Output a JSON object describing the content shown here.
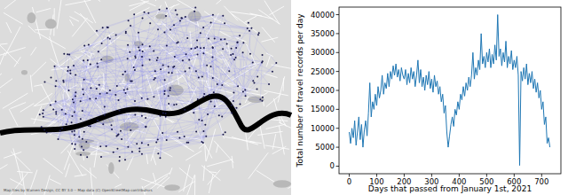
{
  "map": {
    "attribution": "Map tiles by Stamen Design, CC BY 3.0 -- Map data (C) OpenStreetMap contributors"
  },
  "chart_data": {
    "type": "line",
    "x_label": "Days that passed from January 1st, 2021",
    "y_label": "Total number of travel records per day",
    "color": "#1f77b4",
    "x": [
      0,
      5,
      10,
      15,
      20,
      25,
      30,
      35,
      40,
      45,
      50,
      55,
      60,
      65,
      70,
      75,
      80,
      85,
      90,
      95,
      100,
      105,
      110,
      115,
      120,
      125,
      130,
      135,
      140,
      145,
      150,
      155,
      160,
      165,
      170,
      175,
      180,
      185,
      190,
      195,
      200,
      205,
      210,
      215,
      220,
      225,
      230,
      235,
      240,
      245,
      250,
      255,
      260,
      265,
      270,
      275,
      280,
      285,
      290,
      295,
      300,
      305,
      310,
      315,
      320,
      325,
      330,
      335,
      340,
      345,
      350,
      355,
      360,
      365,
      370,
      375,
      380,
      385,
      390,
      395,
      400,
      405,
      410,
      415,
      420,
      425,
      430,
      435,
      440,
      445,
      450,
      455,
      460,
      465,
      470,
      475,
      480,
      485,
      490,
      495,
      500,
      505,
      510,
      515,
      520,
      525,
      530,
      535,
      540,
      545,
      550,
      555,
      560,
      565,
      570,
      575,
      580,
      585,
      590,
      595,
      600,
      605,
      610,
      615,
      620,
      625,
      630,
      635,
      640,
      645,
      650,
      655,
      660,
      665,
      670,
      675,
      680,
      685,
      690,
      695,
      700,
      705,
      710,
      715,
      720,
      725,
      730
    ],
    "values": [
      9000,
      6000,
      10000,
      7500,
      12000,
      5500,
      9000,
      13000,
      7000,
      11000,
      5000,
      9500,
      12000,
      8000,
      14000,
      22000,
      13000,
      17000,
      15000,
      19000,
      16000,
      21000,
      18000,
      20000,
      24000,
      19000,
      22000,
      20500,
      24500,
      21000,
      25000,
      23000,
      26500,
      24000,
      27000,
      23500,
      25500,
      22500,
      26000,
      24000,
      23000,
      25500,
      21500,
      24500,
      22000,
      26000,
      23000,
      25000,
      21000,
      24000,
      28000,
      22000,
      25500,
      21000,
      23500,
      20000,
      24000,
      21500,
      25000,
      20500,
      23000,
      19500,
      24000,
      21000,
      22500,
      19000,
      21000,
      17000,
      19000,
      14000,
      16000,
      9000,
      5000,
      8000,
      11000,
      13000,
      10500,
      15000,
      13500,
      17000,
      15000,
      19000,
      17500,
      21000,
      18500,
      22000,
      20000,
      23500,
      21000,
      24000,
      30000,
      23000,
      26000,
      24000,
      28000,
      25500,
      35000,
      27000,
      29000,
      26000,
      30000,
      27500,
      31000,
      26000,
      29500,
      27000,
      32000,
      28000,
      40000,
      29000,
      31000,
      26500,
      30000,
      27500,
      33000,
      26000,
      29000,
      27000,
      30500,
      25500,
      28000,
      26000,
      29000,
      24000,
      200,
      25000,
      22500,
      26000,
      23000,
      27000,
      21500,
      24500,
      22000,
      25000,
      20500,
      23000,
      19500,
      22000,
      18000,
      20000,
      15000,
      17000,
      11000,
      13000,
      6000,
      7500,
      5000
    ],
    "xlim": [
      -37,
      770
    ],
    "ylim": [
      -2000,
      42000
    ],
    "xticks": [
      0,
      100,
      200,
      300,
      400,
      500,
      600,
      700
    ],
    "yticks": [
      0,
      5000,
      10000,
      15000,
      20000,
      25000,
      30000,
      35000,
      40000
    ],
    "grid": false
  }
}
